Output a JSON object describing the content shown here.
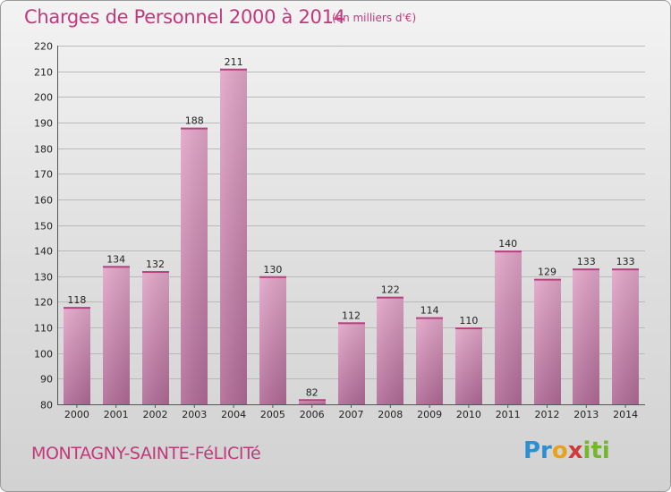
{
  "header": {
    "title": "Charges de Personnel 2000 à 2014",
    "subtitle": "(en milliers d'€)"
  },
  "footer": {
    "town": "MONTAGNY-SAINTE-FéLICITé",
    "logo_text": "Proxiti"
  },
  "colors": {
    "bar": "#d28ab2",
    "bar_dark": "#b26495",
    "title": "#c0397a"
  },
  "chart_data": {
    "type": "bar",
    "categories": [
      "2000",
      "2001",
      "2002",
      "2003",
      "2004",
      "2005",
      "2006",
      "2007",
      "2008",
      "2009",
      "2010",
      "2011",
      "2012",
      "2013",
      "2014"
    ],
    "values": [
      118,
      134,
      132,
      188,
      211,
      130,
      82,
      112,
      122,
      114,
      110,
      140,
      129,
      133,
      133
    ],
    "title": "Charges de Personnel 2000 à 2014",
    "ylim": [
      80,
      220
    ],
    "yticks": [
      80,
      90,
      100,
      110,
      120,
      130,
      140,
      150,
      160,
      170,
      180,
      190,
      200,
      210,
      220
    ],
    "grid": true
  }
}
